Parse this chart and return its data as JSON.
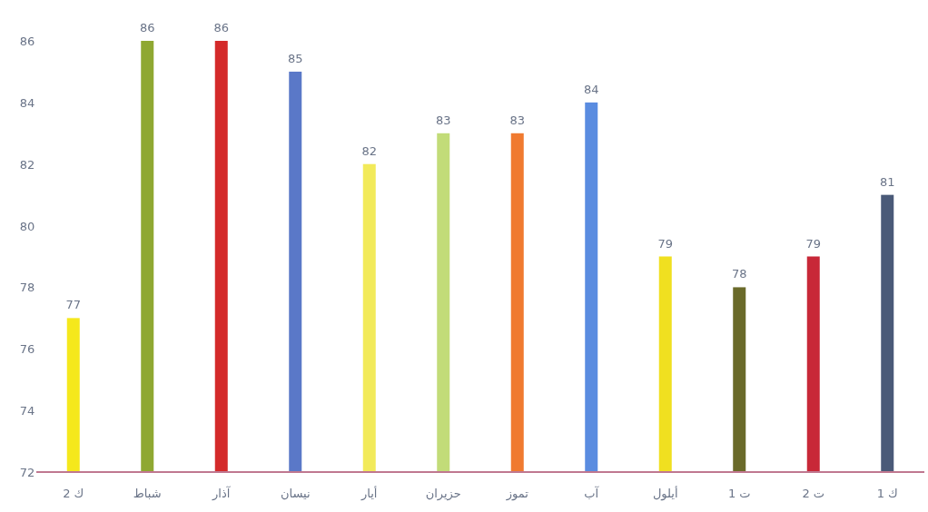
{
  "chart_data": {
    "type": "bar",
    "categories": [
      "ك 2",
      "شباط",
      "آذار",
      "نيسان",
      "أيار",
      "حزيران",
      "تموز",
      "آب",
      "أيلول",
      "ت 1",
      "ت 2",
      "ك 1"
    ],
    "values": [
      77,
      86,
      86,
      85,
      82,
      83,
      83,
      84,
      79,
      78,
      79,
      81
    ],
    "colors": [
      "#f5e81c",
      "#8fa832",
      "#d42a2a",
      "#5a78c8",
      "#f2ea5a",
      "#c2dc78",
      "#f07a30",
      "#5a8ce0",
      "#f0e020",
      "#6a6a2a",
      "#c82838",
      "#4a5a78"
    ],
    "ylim": [
      72,
      86
    ],
    "yticks": [
      72,
      74,
      76,
      78,
      80,
      82,
      84,
      86
    ],
    "data_labels": true
  }
}
